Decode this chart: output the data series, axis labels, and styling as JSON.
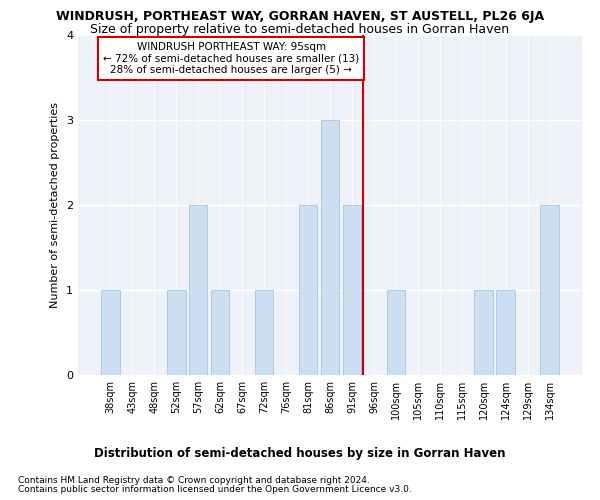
{
  "title": "WINDRUSH, PORTHEAST WAY, GORRAN HAVEN, ST AUSTELL, PL26 6JA",
  "subtitle": "Size of property relative to semi-detached houses in Gorran Haven",
  "xlabel_bottom": "Distribution of semi-detached houses by size in Gorran Haven",
  "ylabel": "Number of semi-detached properties",
  "categories": [
    "38sqm",
    "43sqm",
    "48sqm",
    "52sqm",
    "57sqm",
    "62sqm",
    "67sqm",
    "72sqm",
    "76sqm",
    "81sqm",
    "86sqm",
    "91sqm",
    "96sqm",
    "100sqm",
    "105sqm",
    "110sqm",
    "115sqm",
    "120sqm",
    "124sqm",
    "129sqm",
    "134sqm"
  ],
  "values": [
    1,
    0,
    0,
    1,
    2,
    1,
    0,
    1,
    0,
    2,
    3,
    2,
    0,
    1,
    0,
    0,
    0,
    1,
    1,
    0,
    2
  ],
  "bar_color": "#ccdff2",
  "bar_edge_color": "#aac4e0",
  "vline_x": 11.5,
  "vline_color": "#cc0000",
  "annotation_title": "WINDRUSH PORTHEAST WAY: 95sqm",
  "annotation_line1": "← 72% of semi-detached houses are smaller (13)",
  "annotation_line2": "28% of semi-detached houses are larger (5) →",
  "annotation_box_color": "#cc0000",
  "ylim": [
    0,
    4
  ],
  "yticks": [
    0,
    1,
    2,
    3,
    4
  ],
  "footer_line1": "Contains HM Land Registry data © Crown copyright and database right 2024.",
  "footer_line2": "Contains public sector information licensed under the Open Government Licence v3.0.",
  "bg_color": "#eef2f8",
  "title_fontsize": 9,
  "subtitle_fontsize": 9,
  "ylabel_fontsize": 8,
  "tick_fontsize": 7,
  "footer_fontsize": 6.5,
  "xlabel_bottom_fontsize": 8.5
}
